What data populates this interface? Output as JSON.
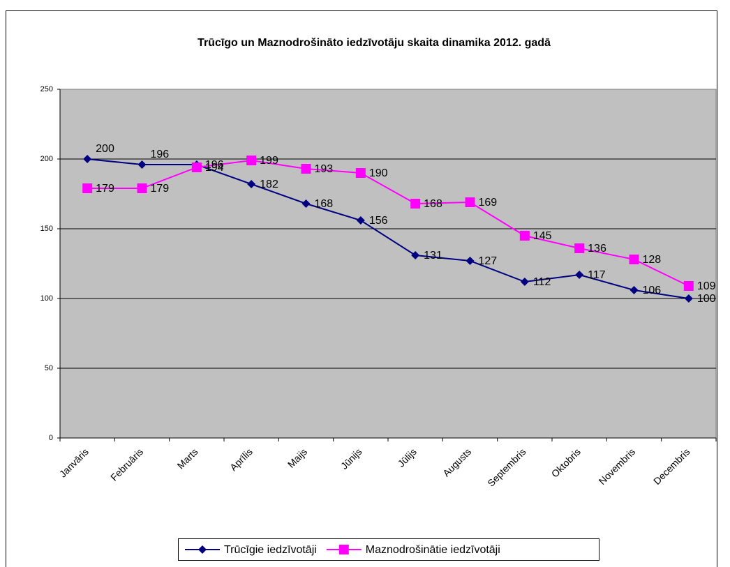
{
  "chart_data": {
    "type": "line",
    "title": "Trūcīgo un Maznodrošināto iedzīvotāju skaita dinamika 2012. gadā",
    "categories": [
      "Janvāris",
      "Februāris",
      "Marts",
      "Aprīlis",
      "Maijs",
      "Jūnijs",
      "Jūlijs",
      "Augusts",
      "Septembris",
      "Oktobris",
      "Novembris",
      "Decembris"
    ],
    "series": [
      {
        "name": "Trūcīgie iedzīvotāji",
        "color": "#000080",
        "marker": "diamond",
        "values": [
          200,
          196,
          196,
          182,
          168,
          156,
          131,
          127,
          112,
          117,
          106,
          100
        ]
      },
      {
        "name": "Maznodrošinātie  iedzīvotāji",
        "color": "#ff00ff",
        "marker": "square",
        "values": [
          179,
          179,
          194,
          199,
          193,
          190,
          168,
          169,
          145,
          136,
          128,
          109
        ]
      }
    ],
    "ylim": [
      0,
      250
    ],
    "yticks": [
      0,
      50,
      100,
      150,
      200,
      250
    ],
    "grid": true,
    "legend": "bottom",
    "plot_background": "#c0c0c0"
  }
}
